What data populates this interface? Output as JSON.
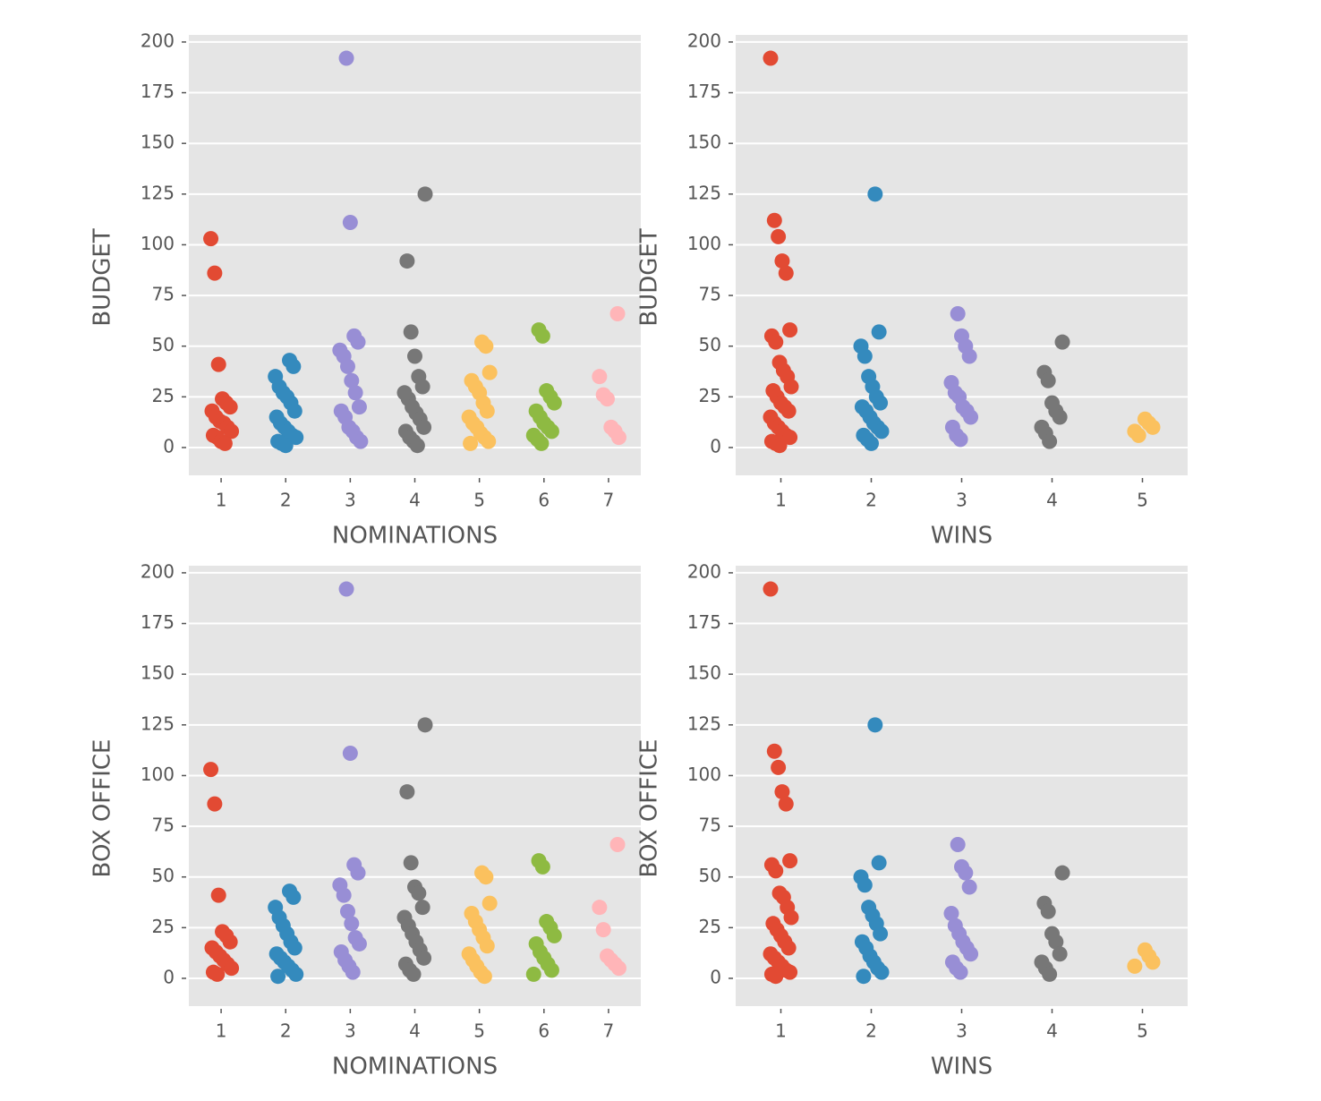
{
  "chart_data": [
    {
      "type": "strip",
      "xlabel": "NOMINATIONS",
      "ylabel": "BUDGET",
      "categories": [
        "1",
        "2",
        "3",
        "4",
        "5",
        "6",
        "7"
      ],
      "colors": [
        "#E24A33",
        "#348ABD",
        "#988ED5",
        "#777777",
        "#FBC15E",
        "#8EBA42",
        "#FFB5B8"
      ],
      "values": [
        [
          103,
          86,
          41,
          24,
          22,
          20,
          18,
          15,
          13,
          12,
          10,
          8,
          6,
          5,
          3,
          2
        ],
        [
          43,
          40,
          35,
          30,
          27,
          25,
          22,
          18,
          15,
          12,
          10,
          8,
          6,
          5,
          3,
          2,
          1
        ],
        [
          192,
          111,
          55,
          52,
          48,
          45,
          40,
          33,
          27,
          20,
          18,
          15,
          10,
          8,
          5,
          3
        ],
        [
          125,
          92,
          57,
          45,
          35,
          30,
          27,
          24,
          20,
          17,
          14,
          10,
          8,
          5,
          3,
          1
        ],
        [
          52,
          50,
          37,
          33,
          30,
          27,
          22,
          18,
          15,
          12,
          10,
          7,
          5,
          3,
          2
        ],
        [
          58,
          55,
          28,
          25,
          22,
          18,
          15,
          12,
          10,
          8,
          6,
          4,
          2
        ],
        [
          66,
          35,
          26,
          24,
          10,
          8,
          5
        ]
      ],
      "ylim": [
        -13.7,
        203.5
      ],
      "yticks": [
        0,
        25,
        50,
        75,
        100,
        125,
        150,
        175,
        200
      ],
      "grid": true
    },
    {
      "type": "strip",
      "xlabel": "WINS",
      "ylabel": "BUDGET",
      "categories": [
        "1",
        "2",
        "3",
        "4",
        "5"
      ],
      "colors": [
        "#E24A33",
        "#348ABD",
        "#988ED5",
        "#777777",
        "#FBC15E"
      ],
      "values": [
        [
          192,
          112,
          104,
          92,
          86,
          58,
          55,
          52,
          42,
          38,
          35,
          30,
          28,
          25,
          22,
          20,
          18,
          15,
          12,
          10,
          8,
          6,
          5,
          3,
          2,
          1
        ],
        [
          125,
          57,
          50,
          45,
          35,
          30,
          25,
          22,
          20,
          18,
          15,
          12,
          10,
          8,
          6,
          4,
          2
        ],
        [
          66,
          55,
          50,
          45,
          32,
          27,
          25,
          20,
          18,
          15,
          10,
          6,
          4
        ],
        [
          52,
          37,
          33,
          22,
          18,
          15,
          10,
          7,
          3
        ],
        [
          14,
          12,
          10,
          8,
          6
        ]
      ],
      "ylim": [
        -13.7,
        203.5
      ],
      "yticks": [
        0,
        25,
        50,
        75,
        100,
        125,
        150,
        175,
        200
      ],
      "grid": true
    },
    {
      "type": "strip",
      "xlabel": "NOMINATIONS",
      "ylabel": "BOX OFFICE",
      "categories": [
        "1",
        "2",
        "3",
        "4",
        "5",
        "6",
        "7"
      ],
      "colors": [
        "#E24A33",
        "#348ABD",
        "#988ED5",
        "#777777",
        "#FBC15E",
        "#8EBA42",
        "#FFB5B8"
      ],
      "values": [
        [
          103,
          86,
          41,
          23,
          21,
          18,
          15,
          13,
          11,
          9,
          7,
          5,
          3,
          2
        ],
        [
          43,
          40,
          35,
          30,
          26,
          22,
          18,
          15,
          12,
          10,
          8,
          6,
          4,
          2,
          1
        ],
        [
          192,
          111,
          56,
          52,
          46,
          41,
          33,
          27,
          20,
          17,
          13,
          9,
          6,
          3
        ],
        [
          125,
          92,
          57,
          45,
          42,
          35,
          30,
          26,
          22,
          18,
          14,
          10,
          7,
          4,
          2
        ],
        [
          52,
          50,
          37,
          32,
          28,
          24,
          20,
          16,
          12,
          9,
          6,
          3,
          1
        ],
        [
          58,
          55,
          28,
          25,
          21,
          17,
          13,
          10,
          7,
          4,
          2
        ],
        [
          66,
          35,
          24,
          11,
          9,
          7,
          5
        ]
      ],
      "ylim": [
        -13.7,
        203.5
      ],
      "yticks": [
        0,
        25,
        50,
        75,
        100,
        125,
        150,
        175,
        200
      ],
      "grid": true
    },
    {
      "type": "strip",
      "xlabel": "WINS",
      "ylabel": "BOX OFFICE",
      "categories": [
        "1",
        "2",
        "3",
        "4",
        "5"
      ],
      "colors": [
        "#E24A33",
        "#348ABD",
        "#988ED5",
        "#777777",
        "#FBC15E"
      ],
      "values": [
        [
          192,
          112,
          104,
          92,
          86,
          58,
          56,
          53,
          42,
          40,
          35,
          30,
          27,
          24,
          21,
          18,
          15,
          12,
          10,
          8,
          6,
          4,
          3,
          2,
          1
        ],
        [
          125,
          57,
          50,
          46,
          35,
          31,
          27,
          22,
          18,
          15,
          11,
          8,
          5,
          3,
          1
        ],
        [
          66,
          55,
          52,
          45,
          32,
          26,
          22,
          18,
          15,
          12,
          8,
          5,
          3
        ],
        [
          52,
          37,
          33,
          22,
          18,
          12,
          8,
          5,
          2
        ],
        [
          14,
          11,
          8,
          6
        ]
      ],
      "ylim": [
        -13.7,
        203.5
      ],
      "yticks": [
        0,
        25,
        50,
        75,
        100,
        125,
        150,
        175,
        200
      ],
      "grid": true
    }
  ]
}
